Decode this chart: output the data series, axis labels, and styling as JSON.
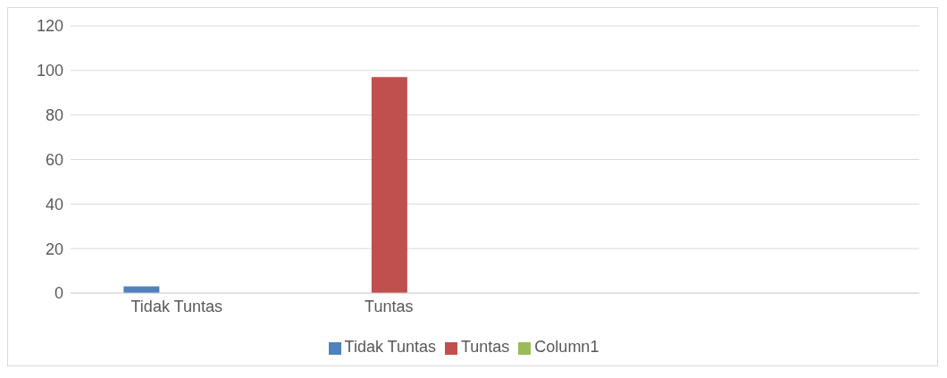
{
  "chart_data": {
    "type": "bar",
    "categories": [
      "Tidak Tuntas",
      "Tuntas",
      null,
      null
    ],
    "series": [
      {
        "name": "Tidak Tuntas",
        "color": "#4f81bd",
        "values": [
          3,
          null,
          null,
          null
        ]
      },
      {
        "name": "Tuntas",
        "color": "#c0504d",
        "values": [
          null,
          97,
          null,
          null
        ]
      },
      {
        "name": "Column1",
        "color": "#9bbb59",
        "values": [
          null,
          null,
          null,
          null
        ]
      }
    ],
    "ylim": [
      0,
      120
    ],
    "yticks": [
      0,
      20,
      40,
      60,
      80,
      100,
      120
    ],
    "grid": "y",
    "legend": "bottom"
  }
}
